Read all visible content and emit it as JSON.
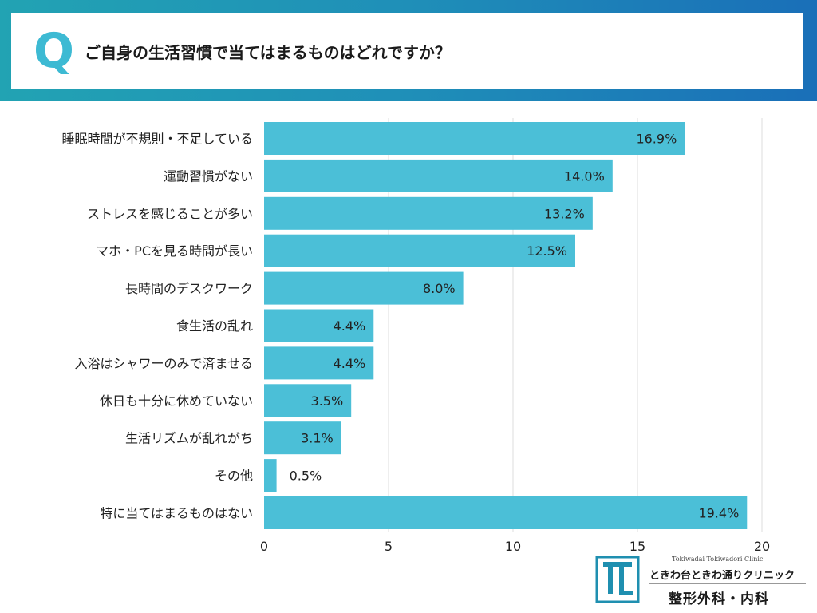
{
  "header": {
    "q_letter": "Q",
    "question": "ご自身の生活習慣で当てはまるものはどれですか？"
  },
  "chart_data": {
    "type": "bar",
    "orientation": "horizontal",
    "categories": [
      "睡眠時間が不規則・不足している",
      "運動習慣がない",
      "ストレスを感じることが多い",
      "マホ・PCを見る時間が長い",
      "長時間のデスクワーク",
      "食生活の乱れ",
      "入浴はシャワーのみで済ませる",
      "休日も十分に休めていない",
      "生活リズムが乱れがち",
      "その他",
      "特に当てはまるものはない"
    ],
    "values": [
      16.9,
      14.0,
      13.2,
      12.5,
      8.0,
      4.4,
      4.4,
      3.5,
      3.1,
      0.5,
      19.4
    ],
    "value_labels": [
      "16.9%",
      "14.0%",
      "13.2%",
      "12.5%",
      "8.0%",
      "4.4%",
      "4.4%",
      "3.5%",
      "3.1%",
      "0.5%",
      "19.4%"
    ],
    "xlim": [
      0,
      20
    ],
    "xticks": [
      0,
      5,
      10,
      15,
      20
    ],
    "xtick_labels": [
      "0",
      "5",
      "10",
      "15",
      "20"
    ],
    "grid": true,
    "bar_color": "#4bbfd7",
    "grid_color": "#dddddd"
  },
  "logo": {
    "en_text": "Tokiwadai Tokiwadori Clinic",
    "jp_text": "ときわ台ときわ通りクリニック",
    "dept_text": "整形外科・内科",
    "mark_color": "#1f8fb0"
  }
}
